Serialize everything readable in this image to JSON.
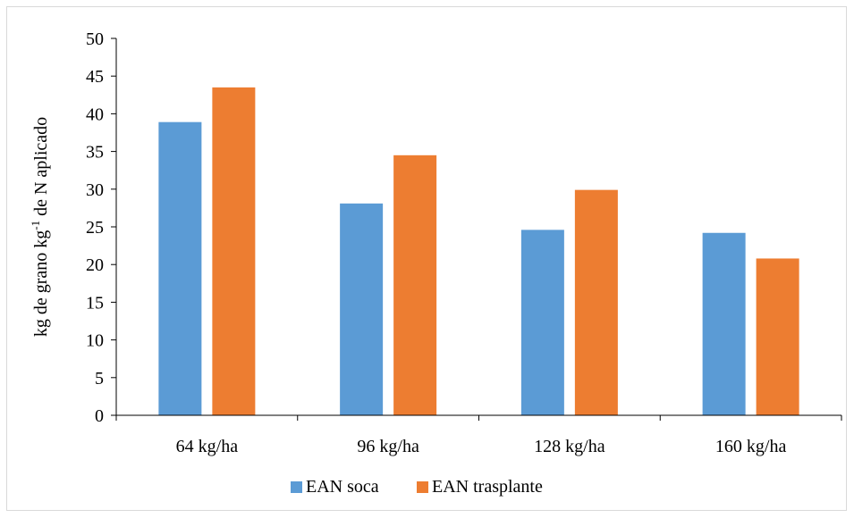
{
  "chart_data": {
    "type": "bar",
    "categories": [
      "64 kg/ha",
      "96 kg/ha",
      "128 kg/ha",
      "160 kg/ha"
    ],
    "series": [
      {
        "name": "EAN soca",
        "values": [
          38.9,
          28.1,
          24.6,
          24.2
        ],
        "color": "#5b9bd5"
      },
      {
        "name": "EAN trasplante",
        "values": [
          43.5,
          34.5,
          29.9,
          20.8
        ],
        "color": "#ed7d31"
      }
    ],
    "title": "",
    "xlabel": "",
    "ylabel": {
      "before": "kg de grano kg",
      "sup": "-1",
      "after": " de N aplicado"
    },
    "ylim": [
      0,
      50
    ],
    "yticks": [
      "0",
      "5",
      "10",
      "15",
      "20",
      "25",
      "30",
      "35",
      "40",
      "45",
      "50"
    ],
    "grid": false,
    "legend_position": "bottom"
  }
}
